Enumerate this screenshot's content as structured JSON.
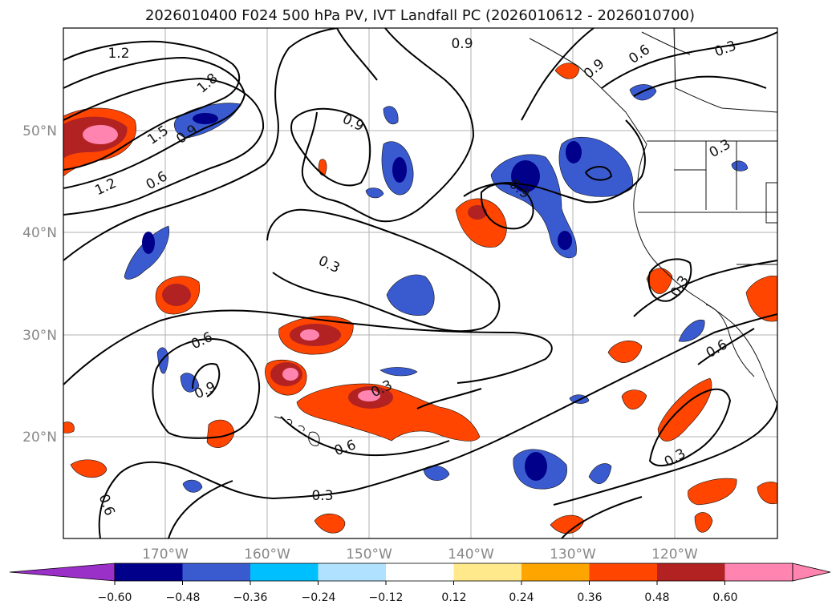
{
  "title": "2026010400 F024 500 hPa PV, IVT Landfall PC (2026010612 - 2026010700)",
  "map": {
    "lat_labels": [
      "50°N",
      "40°N",
      "30°N",
      "20°N"
    ],
    "lon_labels": [
      "170°W",
      "160°W",
      "150°W",
      "140°W",
      "130°W",
      "120°W"
    ],
    "contour_labels": [
      "1.2",
      "1.8",
      "1.5",
      "0.9",
      "1.2",
      "0.6",
      "0.9",
      "0.9",
      "0.6",
      "0.3",
      "0.9",
      "0.3",
      "0.9",
      "0.3",
      "0.6",
      "0.9",
      "0.3",
      "0.6",
      "0.3",
      "0.6",
      "0.3",
      "0.6",
      "0.3"
    ]
  },
  "colorbar": {
    "ticks": [
      "−0.60",
      "−0.48",
      "−0.36",
      "−0.24",
      "−0.12",
      "0.12",
      "0.24",
      "0.36",
      "0.48",
      "0.60"
    ],
    "colors": [
      "#9b30c8",
      "#00008b",
      "#3a5bd0",
      "#00bfff",
      "#b0e2ff",
      "#ffffff",
      "#ffe98a",
      "#ffa500",
      "#ff4500",
      "#b22222",
      "#ff85b0",
      "#ff85b0"
    ]
  }
}
